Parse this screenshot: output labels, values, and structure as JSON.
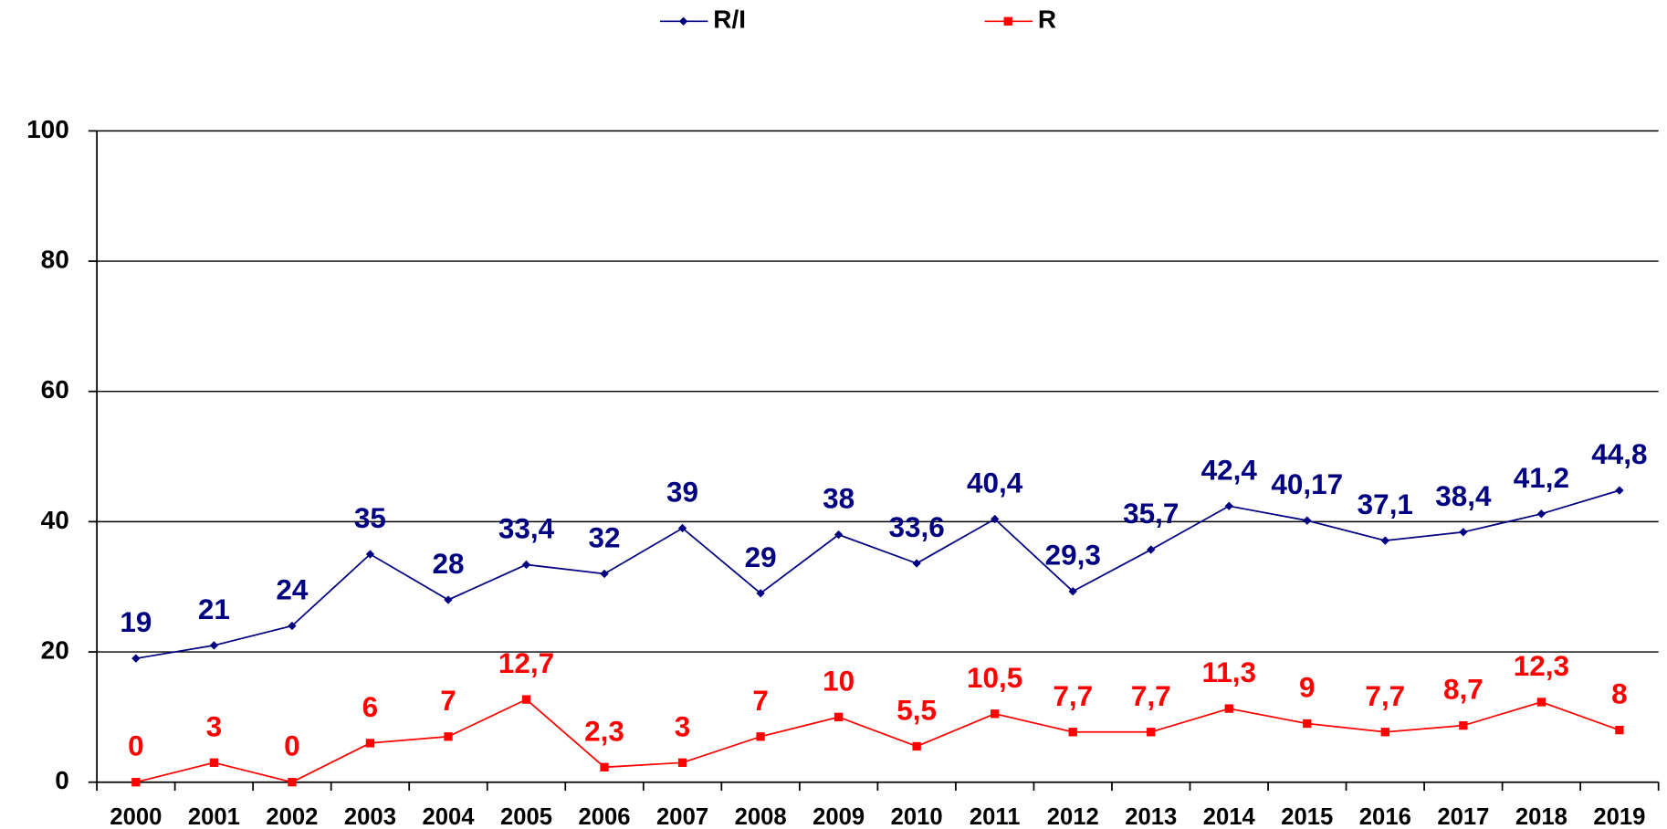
{
  "chart_data": {
    "type": "line",
    "categories": [
      "2000",
      "2001",
      "2002",
      "2003",
      "2004",
      "2005",
      "2006",
      "2007",
      "2008",
      "2009",
      "2010",
      "2011",
      "2012",
      "2013",
      "2014",
      "2015",
      "2016",
      "2017",
      "2018",
      "2019"
    ],
    "series": [
      {
        "name": "R/I",
        "color": "#000080",
        "values": [
          19,
          21,
          24,
          35,
          28,
          33.4,
          32,
          39,
          29,
          38,
          33.6,
          40.4,
          29.3,
          35.7,
          42.4,
          40.17,
          37.1,
          38.4,
          41.2,
          44.8
        ],
        "value_labels": [
          "19",
          "21",
          "24",
          "35",
          "28",
          "33,4",
          "32",
          "39",
          "29",
          "38",
          "33,6",
          "40,4",
          "29,3",
          "35,7",
          "42,4",
          "40,17",
          "37,1",
          "38,4",
          "41,2",
          "44,8"
        ]
      },
      {
        "name": "R",
        "color": "#ff0000",
        "values": [
          0,
          3,
          0,
          6,
          7,
          12.7,
          2.3,
          3,
          7,
          10,
          5.5,
          10.5,
          7.7,
          7.7,
          11.3,
          9,
          7.7,
          8.7,
          12.3,
          8
        ],
        "value_labels": [
          "0",
          "3",
          "0",
          "6",
          "7",
          "12,7",
          "2,3",
          "3",
          "7",
          "10",
          "5,5",
          "10,5",
          "7,7",
          "7,7",
          "11,3",
          "9",
          "7,7",
          "8,7",
          "12,3",
          "8"
        ]
      }
    ],
    "ylim": [
      0,
      100
    ],
    "yticks": [
      0,
      20,
      40,
      60,
      80,
      100
    ],
    "grid": true,
    "legend": "top"
  }
}
